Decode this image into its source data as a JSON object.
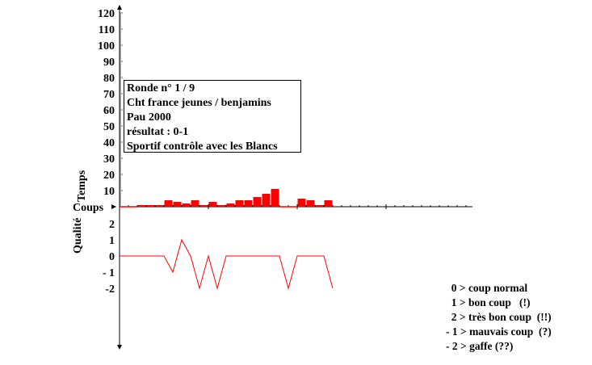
{
  "info": {
    "lines": [
      "Ronde n° 1 / 9",
      "Cht france jeunes / benjamins",
      "Pau 2000",
      "résultat : 0-1",
      "Sportif contrôle avec les Blancs"
    ]
  },
  "legend": [
    {
      "text": "  0 > coup normal"
    },
    {
      "text": "  1 > bon coup   (!)"
    },
    {
      "text": "  2 > très bon coup  (!!)"
    },
    {
      "text": "- 1 > mauvais coup  (?)"
    },
    {
      "text": "- 2 > gaffe (??)"
    }
  ],
  "colors": {
    "series": "#ff0000",
    "axis": "#000000"
  },
  "chart_data": [
    {
      "type": "bar",
      "ylabel": "Temps",
      "xlabel": "Coups",
      "ylim": [
        0,
        120
      ],
      "yticks": [
        10,
        20,
        30,
        40,
        50,
        60,
        70,
        80,
        90,
        100,
        110,
        120
      ],
      "x": [
        1,
        2,
        3,
        4,
        5,
        6,
        7,
        8,
        9,
        10,
        11,
        12,
        13,
        14,
        15,
        16,
        17,
        18,
        19,
        20,
        21,
        22,
        23,
        24
      ],
      "values": [
        0,
        0,
        1,
        1,
        1,
        4,
        3,
        2,
        4,
        1,
        3,
        1,
        2,
        4,
        4,
        6,
        8,
        11,
        0,
        0,
        5,
        4,
        1,
        4
      ]
    },
    {
      "type": "line",
      "ylabel": "Qualité",
      "ylim": [
        -2,
        2
      ],
      "yticks": [
        "2",
        "1",
        "0",
        "- 1",
        "-2"
      ],
      "x": [
        1,
        2,
        3,
        4,
        5,
        6,
        7,
        8,
        9,
        10,
        11,
        12,
        13,
        14,
        15,
        16,
        17,
        18,
        19,
        20,
        21,
        22,
        23,
        24
      ],
      "values": [
        0,
        0,
        0,
        0,
        0,
        -1,
        1,
        0,
        -2,
        0,
        -2,
        0,
        0,
        0,
        0,
        0,
        0,
        0,
        -2,
        0,
        0,
        0,
        0,
        -2
      ]
    }
  ]
}
